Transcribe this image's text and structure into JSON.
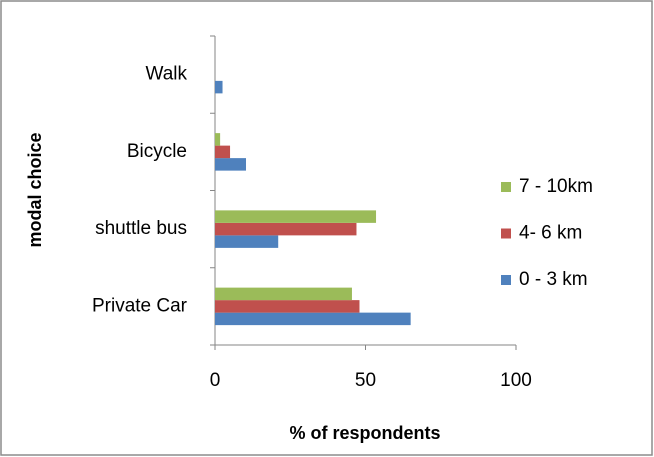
{
  "chart_data": {
    "type": "bar",
    "orientation": "horizontal",
    "xlabel": "% of respondents",
    "ylabel": "modal choice",
    "categories": [
      "Private Car",
      "shuttle bus",
      "Bicycle",
      "Walk"
    ],
    "series": [
      {
        "name": "0 - 3 km",
        "color": "#4f81bd",
        "values": [
          65,
          21,
          10.3,
          2.5
        ]
      },
      {
        "name": "4- 6 km",
        "color": "#c0504d",
        "values": [
          48,
          47,
          5,
          0
        ]
      },
      {
        "name": "7 - 10km",
        "color": "#9bbb59",
        "values": [
          45.5,
          53.5,
          1.7,
          0
        ]
      }
    ],
    "xlim": [
      0,
      100
    ],
    "xticks": [
      0,
      50,
      100
    ],
    "legend": "right"
  }
}
